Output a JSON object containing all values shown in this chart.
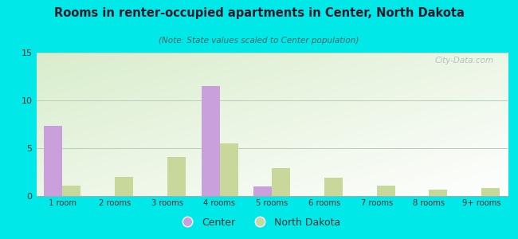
{
  "title": "Rooms in renter-occupied apartments in Center, North Dakota",
  "subtitle": "(Note: State values scaled to Center population)",
  "categories": [
    "1 room",
    "2 rooms",
    "3 rooms",
    "4 rooms",
    "5 rooms",
    "6 rooms",
    "7 rooms",
    "8 rooms",
    "9+ rooms"
  ],
  "center_values": [
    7.3,
    0,
    0,
    11.5,
    1.0,
    0,
    0,
    0,
    0
  ],
  "nd_values": [
    1.1,
    2.0,
    4.1,
    5.5,
    2.9,
    1.9,
    1.1,
    0.7,
    0.8
  ],
  "center_color": "#c9a0dc",
  "nd_color": "#c8d89a",
  "bg_outer": "#00e8e8",
  "title_color": "#1a1a2e",
  "subtitle_color": "#446666",
  "legend_center_label": "Center",
  "legend_nd_label": "North Dakota",
  "ylim": [
    0,
    15
  ],
  "yticks": [
    0,
    5,
    10,
    15
  ],
  "bar_width": 0.35,
  "watermark": "City-Data.com"
}
